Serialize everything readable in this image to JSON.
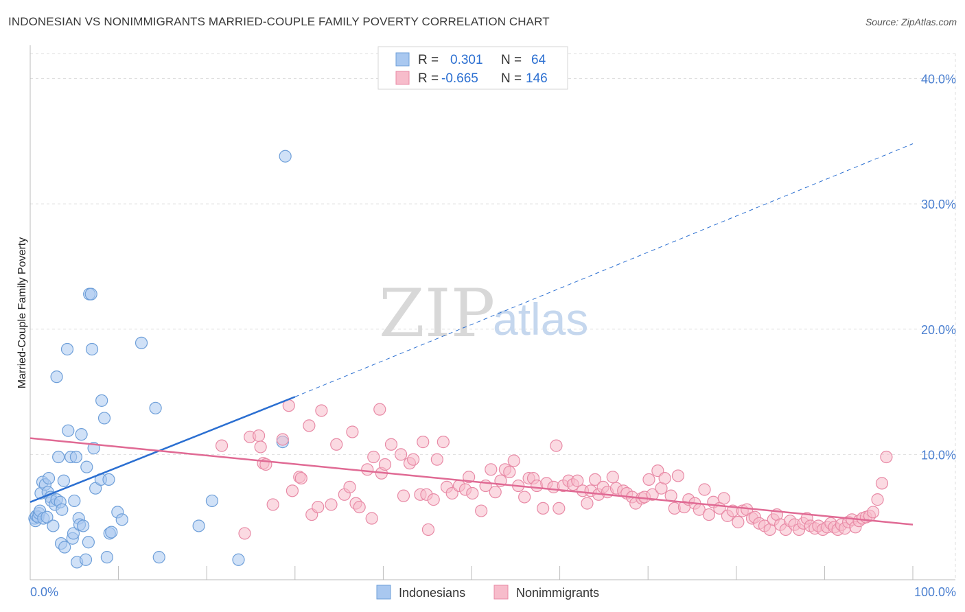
{
  "title": "INDONESIAN VS NONIMMIGRANTS MARRIED-COUPLE FAMILY POVERTY CORRELATION CHART",
  "source": "Source: ZipAtlas.com",
  "watermark": {
    "zip": "ZIP",
    "atlas": "atlas"
  },
  "legend": {
    "r_label": "R =",
    "n_label": "N =",
    "rows": [
      {
        "r": "0.301",
        "n": "64",
        "color": "#a9c8f0",
        "stroke": "#6e9fd9"
      },
      {
        "r": "-0.665",
        "n": "146",
        "color": "#f7bccb",
        "stroke": "#e88aa6"
      }
    ]
  },
  "bottom_legend": [
    "Indonesians",
    "Nonimmigrants"
  ],
  "chart_data": {
    "type": "scatter",
    "xlabel": "",
    "ylabel": "Married-Couple Family Poverty",
    "xlim": [
      0,
      100
    ],
    "ylim": [
      0,
      42
    ],
    "x_tick_labels": [
      "0.0%",
      "100.0%"
    ],
    "y_ticks": [
      10,
      20,
      30,
      40
    ],
    "y_tick_labels": [
      "10.0%",
      "20.0%",
      "30.0%",
      "40.0%"
    ],
    "grid": true,
    "series": [
      {
        "name": "Indonesians",
        "color": "#a9c8f0",
        "stroke": "#6e9fd9",
        "trend": {
          "x0": 0,
          "y0": 6.2,
          "x1": 30,
          "y1": 14.6,
          "x_extend": 100,
          "y_extend": 34.8,
          "color": "#2b6fd1"
        },
        "points": [
          [
            0.5,
            4.9
          ],
          [
            0.6,
            4.7
          ],
          [
            0.7,
            5.1
          ],
          [
            0.9,
            5.0
          ],
          [
            1.0,
            5.3
          ],
          [
            1.1,
            5.5
          ],
          [
            1.2,
            6.9
          ],
          [
            1.4,
            7.8
          ],
          [
            1.5,
            4.9
          ],
          [
            1.7,
            7.6
          ],
          [
            1.9,
            5.0
          ],
          [
            2.0,
            7.0
          ],
          [
            2.1,
            8.1
          ],
          [
            2.3,
            6.6
          ],
          [
            2.4,
            6.3
          ],
          [
            2.6,
            4.3
          ],
          [
            2.8,
            6.0
          ],
          [
            3.0,
            16.2
          ],
          [
            3.0,
            6.4
          ],
          [
            3.2,
            9.8
          ],
          [
            3.4,
            6.2
          ],
          [
            3.5,
            2.9
          ],
          [
            3.6,
            5.6
          ],
          [
            3.8,
            7.9
          ],
          [
            3.9,
            2.6
          ],
          [
            4.2,
            18.4
          ],
          [
            4.3,
            11.9
          ],
          [
            4.6,
            9.8
          ],
          [
            4.8,
            3.3
          ],
          [
            4.9,
            3.7
          ],
          [
            5.0,
            6.3
          ],
          [
            5.2,
            9.8
          ],
          [
            5.3,
            1.4
          ],
          [
            5.5,
            4.9
          ],
          [
            5.6,
            4.4
          ],
          [
            5.8,
            11.6
          ],
          [
            6.0,
            4.3
          ],
          [
            6.3,
            1.6
          ],
          [
            6.4,
            9.0
          ],
          [
            6.6,
            3.0
          ],
          [
            6.7,
            22.8
          ],
          [
            6.9,
            22.8
          ],
          [
            7.0,
            18.4
          ],
          [
            7.2,
            10.5
          ],
          [
            7.4,
            7.3
          ],
          [
            8.0,
            8.0
          ],
          [
            8.1,
            14.3
          ],
          [
            8.4,
            12.9
          ],
          [
            8.7,
            1.8
          ],
          [
            8.9,
            8.0
          ],
          [
            9.0,
            3.7
          ],
          [
            9.2,
            3.8
          ],
          [
            9.9,
            5.4
          ],
          [
            10.4,
            4.8
          ],
          [
            12.6,
            18.9
          ],
          [
            14.2,
            13.7
          ],
          [
            14.6,
            1.8
          ],
          [
            19.1,
            4.3
          ],
          [
            20.6,
            6.3
          ],
          [
            23.6,
            1.6
          ],
          [
            28.6,
            11.0
          ],
          [
            28.9,
            33.8
          ]
        ]
      },
      {
        "name": "Nonimmigrants",
        "color": "#f7bccb",
        "stroke": "#e88aa6",
        "trend": {
          "x0": 0,
          "y0": 11.3,
          "x1": 100,
          "y1": 4.4,
          "color": "#e06a94"
        },
        "points": [
          [
            21.7,
            10.7
          ],
          [
            24.3,
            3.7
          ],
          [
            24.9,
            11.4
          ],
          [
            25.9,
            11.5
          ],
          [
            26.1,
            10.6
          ],
          [
            26.4,
            9.3
          ],
          [
            26.7,
            9.2
          ],
          [
            27.5,
            6.0
          ],
          [
            28.6,
            11.2
          ],
          [
            29.3,
            13.9
          ],
          [
            29.7,
            7.1
          ],
          [
            30.5,
            8.2
          ],
          [
            30.7,
            8.1
          ],
          [
            31.6,
            12.3
          ],
          [
            31.9,
            5.2
          ],
          [
            32.6,
            5.8
          ],
          [
            33.0,
            13.5
          ],
          [
            34.1,
            6.0
          ],
          [
            34.7,
            10.8
          ],
          [
            35.6,
            6.8
          ],
          [
            36.2,
            7.4
          ],
          [
            36.5,
            11.8
          ],
          [
            36.9,
            6.1
          ],
          [
            37.3,
            5.8
          ],
          [
            38.2,
            8.8
          ],
          [
            38.7,
            4.9
          ],
          [
            38.9,
            9.8
          ],
          [
            39.6,
            13.6
          ],
          [
            39.8,
            8.5
          ],
          [
            40.2,
            9.2
          ],
          [
            40.9,
            10.8
          ],
          [
            42.0,
            10.0
          ],
          [
            42.3,
            6.7
          ],
          [
            43.0,
            9.3
          ],
          [
            43.4,
            9.6
          ],
          [
            44.2,
            6.8
          ],
          [
            44.5,
            11.0
          ],
          [
            44.9,
            6.8
          ],
          [
            45.1,
            4.0
          ],
          [
            45.7,
            6.4
          ],
          [
            46.1,
            9.6
          ],
          [
            46.8,
            11.0
          ],
          [
            47.2,
            7.4
          ],
          [
            47.8,
            6.9
          ],
          [
            48.6,
            7.5
          ],
          [
            49.3,
            7.2
          ],
          [
            49.7,
            8.2
          ],
          [
            50.1,
            6.9
          ],
          [
            51.1,
            5.5
          ],
          [
            51.6,
            7.5
          ],
          [
            52.2,
            8.8
          ],
          [
            52.7,
            7.0
          ],
          [
            53.3,
            7.9
          ],
          [
            53.8,
            8.8
          ],
          [
            54.3,
            8.6
          ],
          [
            54.8,
            9.5
          ],
          [
            55.3,
            7.5
          ],
          [
            56.0,
            6.6
          ],
          [
            56.5,
            8.1
          ],
          [
            57.0,
            8.1
          ],
          [
            57.4,
            7.5
          ],
          [
            58.1,
            5.7
          ],
          [
            58.5,
            7.7
          ],
          [
            59.3,
            7.4
          ],
          [
            59.6,
            10.7
          ],
          [
            59.9,
            5.7
          ],
          [
            60.4,
            7.5
          ],
          [
            61.0,
            7.9
          ],
          [
            61.5,
            7.6
          ],
          [
            62.0,
            7.9
          ],
          [
            62.6,
            7.1
          ],
          [
            63.1,
            6.1
          ],
          [
            63.5,
            7.1
          ],
          [
            64.0,
            8.0
          ],
          [
            64.4,
            6.8
          ],
          [
            64.9,
            7.4
          ],
          [
            65.4,
            7.0
          ],
          [
            66.0,
            8.2
          ],
          [
            66.4,
            7.3
          ],
          [
            67.2,
            7.1
          ],
          [
            67.6,
            6.9
          ],
          [
            68.2,
            6.6
          ],
          [
            68.6,
            6.1
          ],
          [
            69.3,
            6.5
          ],
          [
            69.6,
            6.6
          ],
          [
            70.1,
            8.0
          ],
          [
            70.5,
            6.8
          ],
          [
            71.1,
            8.7
          ],
          [
            71.5,
            7.3
          ],
          [
            71.9,
            8.1
          ],
          [
            72.6,
            6.7
          ],
          [
            73.0,
            5.7
          ],
          [
            73.4,
            8.3
          ],
          [
            74.1,
            5.8
          ],
          [
            74.6,
            6.4
          ],
          [
            75.3,
            6.1
          ],
          [
            75.8,
            5.6
          ],
          [
            76.4,
            7.2
          ],
          [
            76.9,
            5.2
          ],
          [
            77.4,
            6.2
          ],
          [
            78.1,
            5.7
          ],
          [
            78.6,
            6.5
          ],
          [
            79.0,
            5.1
          ],
          [
            79.6,
            5.5
          ],
          [
            80.2,
            4.6
          ],
          [
            80.7,
            5.5
          ],
          [
            81.2,
            5.6
          ],
          [
            81.8,
            4.9
          ],
          [
            82.1,
            5.0
          ],
          [
            82.6,
            4.5
          ],
          [
            83.2,
            4.3
          ],
          [
            83.8,
            4.0
          ],
          [
            84.2,
            4.8
          ],
          [
            84.6,
            5.2
          ],
          [
            85.0,
            4.4
          ],
          [
            85.6,
            4.0
          ],
          [
            86.1,
            4.7
          ],
          [
            86.6,
            4.4
          ],
          [
            87.1,
            4.0
          ],
          [
            87.6,
            4.5
          ],
          [
            88.0,
            4.9
          ],
          [
            88.4,
            4.3
          ],
          [
            88.9,
            4.1
          ],
          [
            89.3,
            4.3
          ],
          [
            89.8,
            4.0
          ],
          [
            90.3,
            4.2
          ],
          [
            90.7,
            4.5
          ],
          [
            91.1,
            4.2
          ],
          [
            91.5,
            4.0
          ],
          [
            91.9,
            4.4
          ],
          [
            92.3,
            4.1
          ],
          [
            92.7,
            4.6
          ],
          [
            93.1,
            4.8
          ],
          [
            93.5,
            4.2
          ],
          [
            93.9,
            4.7
          ],
          [
            94.3,
            4.9
          ],
          [
            94.7,
            5.0
          ],
          [
            95.1,
            5.1
          ],
          [
            95.5,
            5.4
          ],
          [
            96.0,
            6.4
          ],
          [
            96.5,
            7.7
          ],
          [
            97.0,
            9.8
          ]
        ]
      }
    ]
  }
}
